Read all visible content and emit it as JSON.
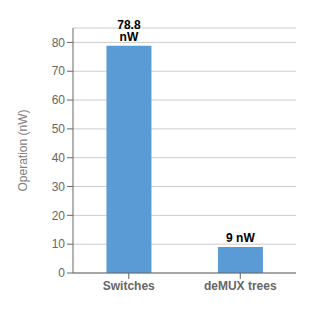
{
  "chart_data": {
    "type": "bar",
    "categories": [
      "Switches",
      "deMUX trees"
    ],
    "values": [
      78.8,
      9
    ],
    "value_labels": [
      "78.8 nW",
      "9 nW"
    ],
    "color": "#5B9BD5",
    "ylabel": "Operation (nW)",
    "ylim": [
      0,
      85
    ],
    "yticks": [
      0,
      10,
      20,
      30,
      40,
      50,
      60,
      70,
      80
    ],
    "grid": true,
    "data_labels": true
  }
}
